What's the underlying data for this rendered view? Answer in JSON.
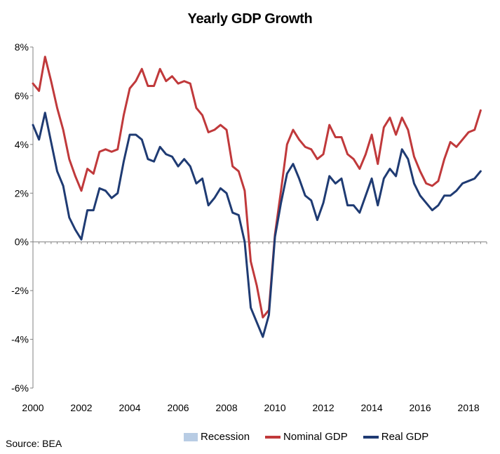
{
  "chart_data": {
    "type": "line",
    "title": "Yearly GDP Growth",
    "xlabel": "",
    "ylabel": "",
    "xlim": [
      2000,
      2018.75
    ],
    "ylim": [
      -6,
      8
    ],
    "y_ticks": [
      -6,
      -4,
      -2,
      0,
      2,
      4,
      6,
      8
    ],
    "y_tick_labels": [
      "-6%",
      "-4%",
      "-2%",
      "0%",
      "2%",
      "4%",
      "6%",
      "8%"
    ],
    "x_ticks": [
      2000,
      2002,
      2004,
      2006,
      2008,
      2010,
      2012,
      2014,
      2016,
      2018
    ],
    "x_tick_labels": [
      "2000",
      "2002",
      "2004",
      "2006",
      "2008",
      "2010",
      "2012",
      "2014",
      "2016",
      "2018"
    ],
    "legend_position": "bottom",
    "series": [
      {
        "name": "Recession",
        "color": "#b8cce4",
        "shading": true,
        "periods": []
      },
      {
        "name": "Nominal GDP",
        "color": "#c0393b",
        "x": [
          2000.0,
          2000.25,
          2000.5,
          2000.75,
          2001.0,
          2001.25,
          2001.5,
          2001.75,
          2002.0,
          2002.25,
          2002.5,
          2002.75,
          2003.0,
          2003.25,
          2003.5,
          2003.75,
          2004.0,
          2004.25,
          2004.5,
          2004.75,
          2005.0,
          2005.25,
          2005.5,
          2005.75,
          2006.0,
          2006.25,
          2006.5,
          2006.75,
          2007.0,
          2007.25,
          2007.5,
          2007.75,
          2008.0,
          2008.25,
          2008.5,
          2008.75,
          2009.0,
          2009.25,
          2009.5,
          2009.75,
          2010.0,
          2010.25,
          2010.5,
          2010.75,
          2011.0,
          2011.25,
          2011.5,
          2011.75,
          2012.0,
          2012.25,
          2012.5,
          2012.75,
          2013.0,
          2013.25,
          2013.5,
          2013.75,
          2014.0,
          2014.25,
          2014.5,
          2014.75,
          2015.0,
          2015.25,
          2015.5,
          2015.75,
          2016.0,
          2016.25,
          2016.5,
          2016.75,
          2017.0,
          2017.25,
          2017.5,
          2017.75,
          2018.0,
          2018.25,
          2018.5
        ],
        "values": [
          6.5,
          6.2,
          7.6,
          6.6,
          5.5,
          4.6,
          3.4,
          2.7,
          2.1,
          3.0,
          2.8,
          3.7,
          3.8,
          3.7,
          3.8,
          5.2,
          6.3,
          6.6,
          7.1,
          6.4,
          6.4,
          7.1,
          6.6,
          6.8,
          6.5,
          6.6,
          6.5,
          5.5,
          5.2,
          4.5,
          4.6,
          4.8,
          4.6,
          3.1,
          2.9,
          2.1,
          -0.8,
          -1.8,
          -3.1,
          -2.8,
          0.3,
          2.1,
          4.0,
          4.6,
          4.2,
          3.9,
          3.8,
          3.4,
          3.6,
          4.8,
          4.3,
          4.3,
          3.6,
          3.4,
          3.0,
          3.6,
          4.4,
          3.2,
          4.7,
          5.1,
          4.4,
          5.1,
          4.6,
          3.5,
          2.9,
          2.4,
          2.3,
          2.5,
          3.4,
          4.1,
          3.9,
          4.2,
          4.5,
          4.6,
          5.4
        ]
      },
      {
        "name": "Real GDP",
        "color": "#1f3b73",
        "x": [
          2000.0,
          2000.25,
          2000.5,
          2000.75,
          2001.0,
          2001.25,
          2001.5,
          2001.75,
          2002.0,
          2002.25,
          2002.5,
          2002.75,
          2003.0,
          2003.25,
          2003.5,
          2003.75,
          2004.0,
          2004.25,
          2004.5,
          2004.75,
          2005.0,
          2005.25,
          2005.5,
          2005.75,
          2006.0,
          2006.25,
          2006.5,
          2006.75,
          2007.0,
          2007.25,
          2007.5,
          2007.75,
          2008.0,
          2008.25,
          2008.5,
          2008.75,
          2009.0,
          2009.25,
          2009.5,
          2009.75,
          2010.0,
          2010.25,
          2010.5,
          2010.75,
          2011.0,
          2011.25,
          2011.5,
          2011.75,
          2012.0,
          2012.25,
          2012.5,
          2012.75,
          2013.0,
          2013.25,
          2013.5,
          2013.75,
          2014.0,
          2014.25,
          2014.5,
          2014.75,
          2015.0,
          2015.25,
          2015.5,
          2015.75,
          2016.0,
          2016.25,
          2016.5,
          2016.75,
          2017.0,
          2017.25,
          2017.5,
          2017.75,
          2018.0,
          2018.25,
          2018.5
        ],
        "values": [
          4.8,
          4.2,
          5.3,
          4.1,
          2.9,
          2.3,
          1.0,
          0.5,
          0.1,
          1.3,
          1.3,
          2.2,
          2.1,
          1.8,
          2.0,
          3.3,
          4.4,
          4.4,
          4.2,
          3.4,
          3.3,
          3.9,
          3.6,
          3.5,
          3.1,
          3.4,
          3.1,
          2.4,
          2.6,
          1.5,
          1.8,
          2.2,
          2.0,
          1.2,
          1.1,
          0.0,
          -2.7,
          -3.3,
          -3.9,
          -3.0,
          0.2,
          1.6,
          2.8,
          3.2,
          2.6,
          1.9,
          1.7,
          0.9,
          1.6,
          2.7,
          2.4,
          2.6,
          1.5,
          1.5,
          1.2,
          1.9,
          2.6,
          1.5,
          2.6,
          3.0,
          2.7,
          3.8,
          3.4,
          2.4,
          1.9,
          1.6,
          1.3,
          1.5,
          1.9,
          1.9,
          2.1,
          2.4,
          2.5,
          2.6,
          2.9
        ]
      }
    ]
  },
  "legend": {
    "recession_label": "Recession",
    "nominal_label": "Nominal GDP",
    "real_label": "Real GDP"
  },
  "source": "Source: BEA"
}
